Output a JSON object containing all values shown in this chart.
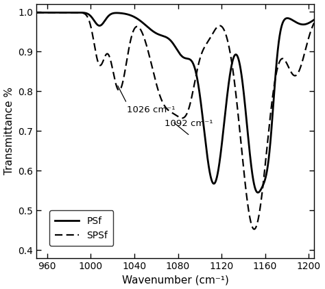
{
  "xmin": 950,
  "xmax": 1205,
  "ymin": 0.38,
  "ymax": 1.02,
  "xlabel": "Wavenumber (cm⁻¹)",
  "ylabel": "Transmittance %",
  "annotation1_text": "1026 cm⁻¹",
  "annotation2_text": "1092 cm⁻¹",
  "legend_psf": "PSf",
  "legend_spsf": "SPSf",
  "line_color": "#000000",
  "background_color": "#ffffff",
  "xticks": [
    960,
    1000,
    1040,
    1080,
    1120,
    1160,
    1200
  ],
  "yticks": [
    0.4,
    0.5,
    0.6,
    0.7,
    0.8,
    0.9,
    1.0
  ]
}
